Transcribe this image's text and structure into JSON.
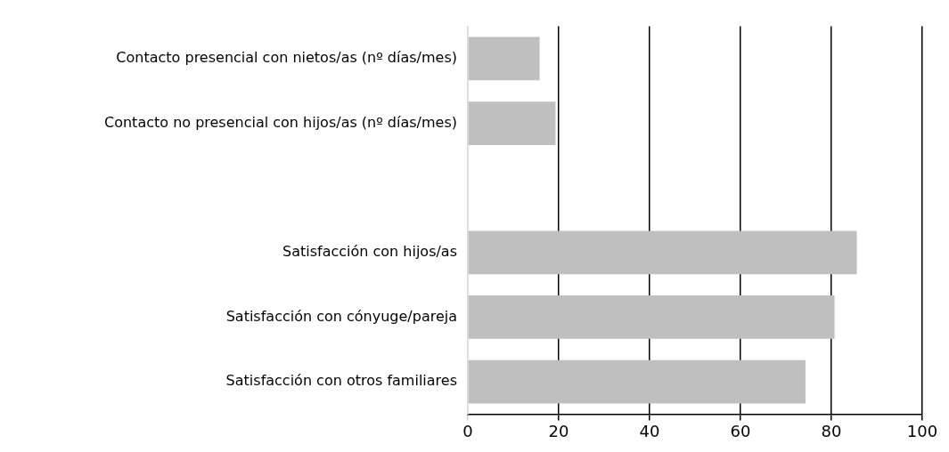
{
  "chart_data": {
    "type": "bar",
    "orientation": "horizontal",
    "categories": [
      "Contacto presencial con nietos/as (nº días/mes)",
      "Contacto no presencial con hijos/as (nº días/mes)",
      null,
      "Satisfacción con hijos/as",
      "Satisfacción con cónyuge/pareja",
      "Satisfacción con otros familiares"
    ],
    "values": [
      15.8,
      19.3,
      null,
      85.6,
      80.7,
      74.3
    ],
    "color": "#bfbfbf",
    "xlim": [
      0,
      100
    ],
    "xticks": [
      0,
      20,
      40,
      60,
      80,
      100
    ],
    "grid": "x"
  }
}
